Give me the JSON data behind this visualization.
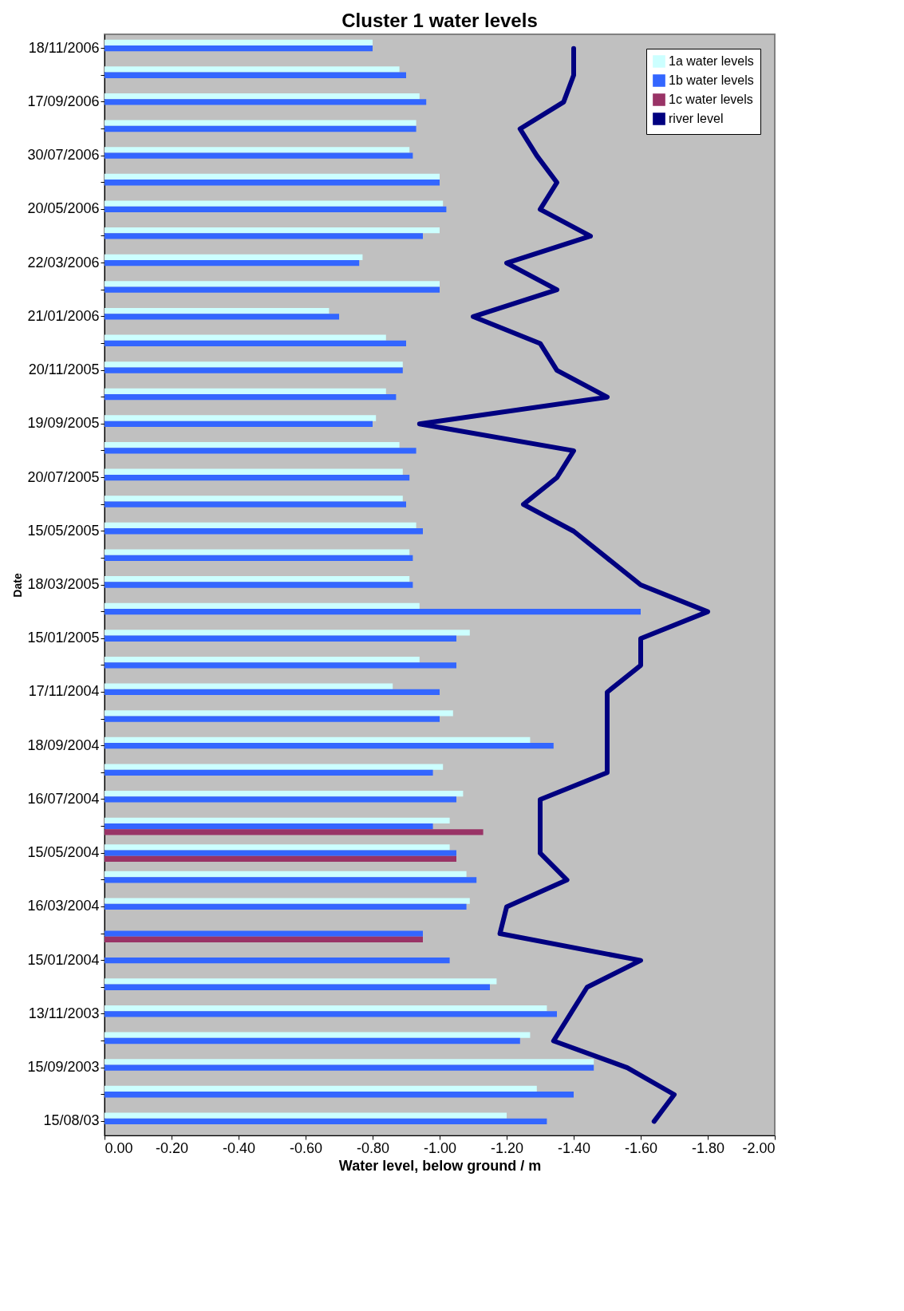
{
  "chart_data": {
    "type": "bar",
    "orientation": "horizontal",
    "title": "Cluster 1 water levels",
    "xlabel": "Water level, below ground / m",
    "ylabel": "Date",
    "categories": [
      "18/11/2006",
      null,
      "17/09/2006",
      null,
      "30/07/2006",
      null,
      "20/05/2006",
      null,
      "22/03/2006",
      null,
      "21/01/2006",
      null,
      "20/11/2005",
      null,
      "19/09/2005",
      null,
      "20/07/2005",
      null,
      "15/05/2005",
      null,
      "18/03/2005",
      null,
      "15/01/2005",
      null,
      "17/11/2004",
      null,
      "18/09/2004",
      null,
      "16/07/2004",
      null,
      "15/05/2004",
      null,
      "16/03/2004",
      null,
      "15/01/2004",
      null,
      "13/11/2003",
      null,
      "15/09/2003",
      null,
      "15/08/03"
    ],
    "series": [
      {
        "name": "1a water levels",
        "color": "#ccffff",
        "values": [
          -0.8,
          -0.88,
          -0.94,
          -0.93,
          -0.91,
          -1.0,
          -1.01,
          -1.0,
          -0.77,
          -1.0,
          -0.67,
          -0.84,
          -0.89,
          -0.84,
          -0.81,
          -0.88,
          -0.89,
          -0.89,
          -0.93,
          -0.91,
          -0.91,
          -0.94,
          -1.09,
          -0.94,
          -0.86,
          -1.04,
          -1.27,
          -1.01,
          -1.07,
          -1.03,
          -1.03,
          -1.08,
          -1.09,
          null,
          null,
          -1.17,
          -1.32,
          -1.27,
          -1.46,
          -1.29,
          -1.2
        ]
      },
      {
        "name": "1b water levels",
        "color": "#3366ff",
        "values": [
          -0.8,
          -0.9,
          -0.96,
          -0.93,
          -0.92,
          -1.0,
          -1.02,
          -0.95,
          -0.76,
          -1.0,
          -0.7,
          -0.9,
          -0.89,
          -0.87,
          -0.8,
          -0.93,
          -0.91,
          -0.9,
          -0.95,
          -0.92,
          -0.92,
          -1.6,
          -1.05,
          -1.05,
          -1.0,
          -1.0,
          -1.34,
          -0.98,
          -1.05,
          -0.98,
          -1.05,
          -1.11,
          -1.08,
          -0.95,
          -1.03,
          -1.15,
          -1.35,
          -1.24,
          -1.46,
          -1.4,
          -1.32
        ]
      },
      {
        "name": "1c water levels",
        "color": "#993366",
        "values": [
          null,
          null,
          null,
          null,
          null,
          null,
          null,
          null,
          null,
          null,
          null,
          null,
          null,
          null,
          null,
          null,
          null,
          null,
          null,
          null,
          null,
          null,
          null,
          null,
          null,
          null,
          null,
          null,
          null,
          -1.13,
          -1.05,
          null,
          null,
          -0.95,
          null,
          null,
          null,
          null,
          null,
          null,
          null
        ]
      },
      {
        "name": "river level",
        "type": "line",
        "color": "#000080",
        "values": [
          -1.4,
          -1.4,
          -1.37,
          -1.24,
          -1.29,
          -1.35,
          -1.3,
          -1.45,
          -1.2,
          -1.35,
          -1.1,
          -1.3,
          -1.35,
          -1.5,
          -0.94,
          -1.4,
          -1.35,
          -1.25,
          -1.4,
          -1.5,
          -1.6,
          -1.8,
          -1.6,
          -1.6,
          -1.5,
          -1.5,
          -1.5,
          -1.5,
          -1.3,
          -1.3,
          -1.3,
          -1.38,
          -1.2,
          -1.18,
          -1.6,
          -1.44,
          -1.39,
          -1.34,
          -1.56,
          -1.7,
          -1.64
        ]
      }
    ],
    "xlim": [
      0,
      -2
    ],
    "xticks": [
      {
        "value": 0,
        "label": "0.00"
      },
      {
        "value": -0.2,
        "label": "-0.20"
      },
      {
        "value": -0.4,
        "label": "-0.40"
      },
      {
        "value": -0.6,
        "label": "-0.60"
      },
      {
        "value": -0.8,
        "label": "-0.80"
      },
      {
        "value": -1,
        "label": "-1.00"
      },
      {
        "value": -1.2,
        "label": "-1.20"
      },
      {
        "value": -1.4,
        "label": "-1.40"
      },
      {
        "value": -1.6,
        "label": "-1.60"
      },
      {
        "value": -1.8,
        "label": "-1.80"
      },
      {
        "value": -2,
        "label": "-2.00"
      }
    ],
    "legend": "top right",
    "grid": false
  }
}
